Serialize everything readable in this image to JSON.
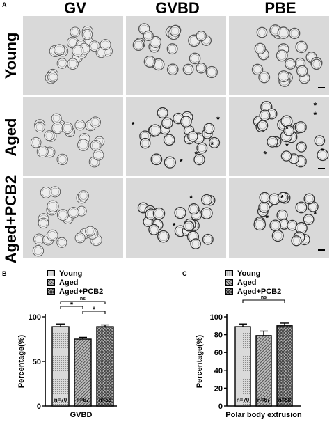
{
  "panel_a": {
    "letter": "A",
    "columns": [
      "GV",
      "GVBD",
      "PBE"
    ],
    "rows": [
      "Young",
      "Aged",
      "Aged+PCB2"
    ],
    "asterisk": "*"
  },
  "legend": [
    "Young",
    "Aged",
    "Aged+PCB2"
  ],
  "chart_data": [
    {
      "panel": "B",
      "type": "bar",
      "categories": [
        "Young",
        "Aged",
        "Aged+PCB2"
      ],
      "values": [
        89,
        75,
        89
      ],
      "errors": [
        3,
        2,
        2
      ],
      "bar_labels": [
        "n=70",
        "n=67",
        "n=58"
      ],
      "ylabel": "Percentage(%)",
      "xlabel": "GVBD",
      "ylim": [
        0,
        100
      ],
      "yticks": [
        0,
        50,
        100
      ],
      "significance": [
        {
          "from": 0,
          "to": 2,
          "label": "ns"
        },
        {
          "from": 0,
          "to": 1,
          "label": "*"
        },
        {
          "from": 1,
          "to": 2,
          "label": "*"
        }
      ]
    },
    {
      "panel": "C",
      "type": "bar",
      "categories": [
        "Young",
        "Aged",
        "Aged+PCB2"
      ],
      "values": [
        89,
        79,
        90
      ],
      "errors": [
        3,
        5,
        3
      ],
      "bar_labels": [
        "n=70",
        "n=67",
        "n=58"
      ],
      "ylabel": "Percentage(%)",
      "xlabel": "Polar body extrusion",
      "ylim": [
        0,
        100
      ],
      "yticks": [
        0,
        20,
        40,
        60,
        80,
        100
      ],
      "significance": [
        {
          "from": 0,
          "to": 2,
          "label": "ns"
        }
      ]
    }
  ]
}
